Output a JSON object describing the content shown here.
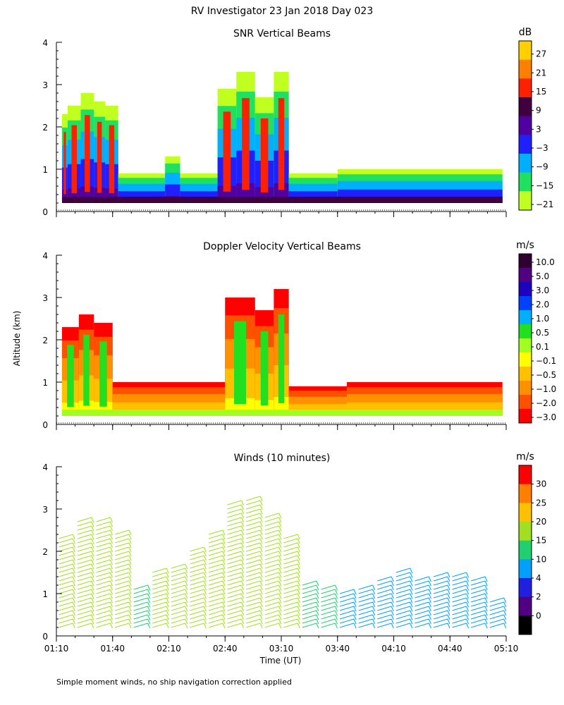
{
  "figure": {
    "title": "RV Investigator  23 Jan 2018 Day 023",
    "y_axis_label": "Altitude (km)",
    "x_axis_label": "Time (UT)",
    "footnote": "Simple moment winds, no ship navigation correction applied"
  },
  "chart_data": [
    {
      "type": "heatmap",
      "title": "SNR Vertical Beams",
      "xlabel": "Time (UT)",
      "ylabel": "Altitude (km)",
      "ylim": [
        0,
        4
      ],
      "yticks": [
        "0",
        "1",
        "2",
        "3",
        "4"
      ],
      "xlim": [
        "01:10",
        "05:10"
      ],
      "colorbar": {
        "unit": "dB",
        "tick_labels": [
          "27",
          "21",
          "15",
          "9",
          "3",
          "−3",
          "−9",
          "−15",
          "−21"
        ],
        "colors": [
          "#ffd000",
          "#ff8000",
          "#ff2000",
          "#400040",
          "#5000a0",
          "#2020ff",
          "#00b0ff",
          "#20e060",
          "#c0ff20"
        ]
      },
      "cloud_columns": [
        {
          "start": "01:13",
          "end": "01:16",
          "top_km": 2.3
        },
        {
          "start": "01:16",
          "end": "01:23",
          "top_km": 2.5
        },
        {
          "start": "01:23",
          "end": "01:30",
          "top_km": 2.8
        },
        {
          "start": "01:30",
          "end": "01:36",
          "top_km": 2.6
        },
        {
          "start": "01:36",
          "end": "01:43",
          "top_km": 2.5
        },
        {
          "start": "01:43",
          "end": "02:08",
          "top_km": 0.9
        },
        {
          "start": "02:08",
          "end": "02:16",
          "top_km": 1.3
        },
        {
          "start": "02:16",
          "end": "02:36",
          "top_km": 0.9
        },
        {
          "start": "02:36",
          "end": "02:46",
          "top_km": 2.9
        },
        {
          "start": "02:46",
          "end": "02:56",
          "top_km": 3.3
        },
        {
          "start": "02:56",
          "end": "03:06",
          "top_km": 2.7
        },
        {
          "start": "03:06",
          "end": "03:14",
          "top_km": 3.3
        },
        {
          "start": "03:14",
          "end": "03:40",
          "top_km": 0.9
        },
        {
          "start": "03:40",
          "end": "05:08",
          "top_km": 1.0
        }
      ]
    },
    {
      "type": "heatmap",
      "title": "Doppler Velocity Vertical Beams",
      "xlabel": "Time (UT)",
      "ylabel": "Altitude (km)",
      "ylim": [
        0,
        4
      ],
      "yticks": [
        "0",
        "1",
        "2",
        "3",
        "4"
      ],
      "xlim": [
        "01:10",
        "05:10"
      ],
      "colorbar": {
        "unit": "m/s",
        "tick_labels": [
          "10.0",
          "5.0",
          "3.0",
          "2.0",
          "1.0",
          "0.5",
          "0.1",
          "−0.1",
          "−0.5",
          "−1.0",
          "−2.0",
          "−3.0"
        ],
        "colors": [
          "#300030",
          "#500080",
          "#2000c0",
          "#0040ff",
          "#00b0ff",
          "#20e020",
          "#a0ff20",
          "#ffff00",
          "#ffc000",
          "#ff9000",
          "#ff5000",
          "#ff0000"
        ]
      },
      "cloud_columns": [
        {
          "start": "01:13",
          "end": "01:22",
          "top_km": 2.3
        },
        {
          "start": "01:22",
          "end": "01:30",
          "top_km": 2.6
        },
        {
          "start": "01:30",
          "end": "01:40",
          "top_km": 2.4
        },
        {
          "start": "01:40",
          "end": "02:40",
          "top_km": 1.0
        },
        {
          "start": "02:40",
          "end": "02:56",
          "top_km": 3.0
        },
        {
          "start": "02:56",
          "end": "03:06",
          "top_km": 2.7
        },
        {
          "start": "03:06",
          "end": "03:14",
          "top_km": 3.2
        },
        {
          "start": "03:14",
          "end": "03:45",
          "top_km": 0.9
        },
        {
          "start": "03:45",
          "end": "05:08",
          "top_km": 1.0
        }
      ]
    },
    {
      "type": "barbs",
      "title": "Winds (10 minutes)",
      "xlabel": "Time (UT)",
      "ylabel": "Altitude (km)",
      "ylim": [
        0,
        4
      ],
      "yticks": [
        "0",
        "1",
        "2",
        "3",
        "4"
      ],
      "xticks": [
        "01:10",
        "01:40",
        "02:10",
        "02:40",
        "03:10",
        "03:40",
        "04:10",
        "04:40",
        "05:10"
      ],
      "colorbar": {
        "unit": "m/s",
        "tick_labels": [
          "30",
          "25",
          "20",
          "15",
          "10",
          "4",
          "2",
          "0"
        ],
        "colors": [
          "#ff0000",
          "#ff8000",
          "#ffc000",
          "#a0e020",
          "#20d070",
          "#00a0ff",
          "#2020e0",
          "#500080",
          "#000000"
        ]
      },
      "wind_profiles": [
        {
          "time": "01:15",
          "top_km": 2.4,
          "speed_mps": 17
        },
        {
          "time": "01:25",
          "top_km": 2.8,
          "speed_mps": 19
        },
        {
          "time": "01:35",
          "top_km": 2.8,
          "speed_mps": 18
        },
        {
          "time": "01:45",
          "top_km": 2.5,
          "speed_mps": 16
        },
        {
          "time": "01:55",
          "top_km": 1.2,
          "speed_mps": 14
        },
        {
          "time": "02:05",
          "top_km": 1.6,
          "speed_mps": 15
        },
        {
          "time": "02:15",
          "top_km": 1.7,
          "speed_mps": 16
        },
        {
          "time": "02:25",
          "top_km": 2.1,
          "speed_mps": 17
        },
        {
          "time": "02:35",
          "top_km": 2.5,
          "speed_mps": 18
        },
        {
          "time": "02:45",
          "top_km": 3.2,
          "speed_mps": 19
        },
        {
          "time": "02:55",
          "top_km": 3.3,
          "speed_mps": 19
        },
        {
          "time": "03:05",
          "top_km": 2.9,
          "speed_mps": 18
        },
        {
          "time": "03:15",
          "top_km": 2.4,
          "speed_mps": 16
        },
        {
          "time": "03:25",
          "top_km": 1.3,
          "speed_mps": 12
        },
        {
          "time": "03:35",
          "top_km": 1.2,
          "speed_mps": 11
        },
        {
          "time": "03:45",
          "top_km": 1.1,
          "speed_mps": 9
        },
        {
          "time": "03:55",
          "top_km": 1.2,
          "speed_mps": 8
        },
        {
          "time": "04:05",
          "top_km": 1.4,
          "speed_mps": 6
        },
        {
          "time": "04:15",
          "top_km": 1.6,
          "speed_mps": 5
        },
        {
          "time": "04:25",
          "top_km": 1.4,
          "speed_mps": 6
        },
        {
          "time": "04:35",
          "top_km": 1.5,
          "speed_mps": 5
        },
        {
          "time": "04:45",
          "top_km": 1.5,
          "speed_mps": 5
        },
        {
          "time": "04:55",
          "top_km": 1.4,
          "speed_mps": 5
        },
        {
          "time": "05:05",
          "top_km": 0.9,
          "speed_mps": 4
        }
      ]
    }
  ]
}
